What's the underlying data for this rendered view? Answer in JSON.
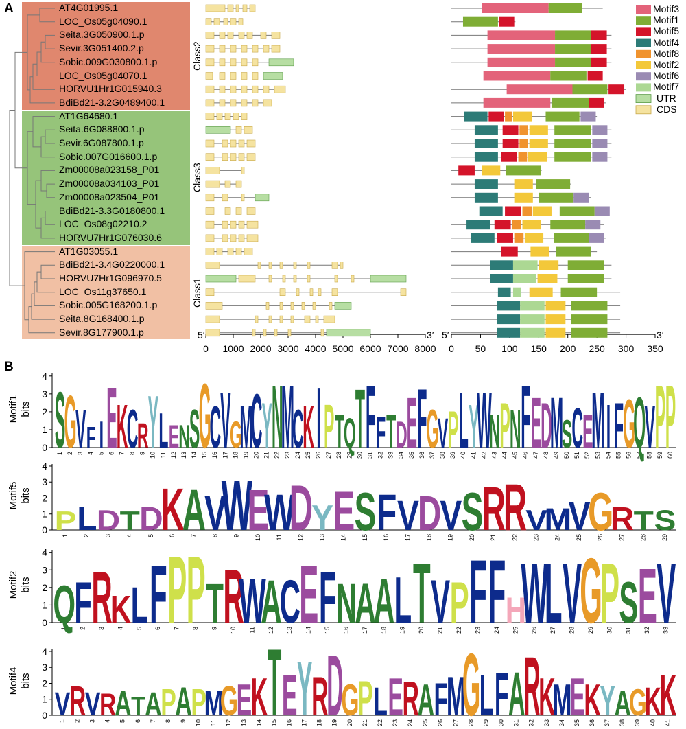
{
  "panel_a": {
    "label": "A",
    "classes": [
      {
        "name": "Class2",
        "color": "#e0876e"
      },
      {
        "name": "Class3",
        "color": "#96c47a"
      },
      {
        "name": "Class1",
        "color": "#f1c0a4"
      }
    ],
    "genes": [
      {
        "name": "AT4G01995.1",
        "class": 0,
        "motifs": [
          [
            "Motif3",
            52,
            167
          ],
          [
            "Motif1",
            167,
            224
          ]
        ]
      },
      {
        "name": "LOC_Os05g04090.1",
        "class": 0,
        "motifs": [
          [
            "Motif1",
            20,
            80
          ],
          [
            "Motif5",
            82,
            108
          ]
        ]
      },
      {
        "name": "Seita.3G050900.1.p",
        "class": 0,
        "motifs": [
          [
            "Motif3",
            62,
            178
          ],
          [
            "Motif1",
            178,
            240
          ],
          [
            "Motif5",
            240,
            267
          ]
        ]
      },
      {
        "name": "Sevir.3G051400.2.p",
        "class": 0,
        "motifs": [
          [
            "Motif3",
            62,
            178
          ],
          [
            "Motif1",
            178,
            240
          ],
          [
            "Motif5",
            240,
            267
          ]
        ]
      },
      {
        "name": "Sobic.009G030800.1.p",
        "class": 0,
        "motifs": [
          [
            "Motif3",
            62,
            178
          ],
          [
            "Motif1",
            178,
            240
          ],
          [
            "Motif5",
            240,
            267
          ]
        ]
      },
      {
        "name": "LOC_Os05g04070.1",
        "class": 0,
        "motifs": [
          [
            "Motif3",
            55,
            170
          ],
          [
            "Motif1",
            170,
            232
          ],
          [
            "Motif5",
            234,
            260
          ]
        ]
      },
      {
        "name": "HORVU1Hr1G015940.3",
        "class": 0,
        "motifs": [
          [
            "Motif3",
            95,
            208
          ],
          [
            "Motif1",
            208,
            268
          ],
          [
            "Motif5",
            270,
            297
          ]
        ]
      },
      {
        "name": "BdiBd21-3.2G0489400.1",
        "class": 0,
        "motifs": [
          [
            "Motif3",
            55,
            170
          ],
          [
            "Motif1",
            172,
            236
          ],
          [
            "Motif5",
            236,
            262
          ]
        ]
      },
      {
        "name": "AT1G64680.1",
        "class": 1,
        "motifs": [
          [
            "Motif4",
            22,
            62
          ],
          [
            "Motif5",
            64,
            90
          ],
          [
            "Motif8",
            92,
            104
          ],
          [
            "Motif2",
            106,
            138
          ],
          [
            "Motif1",
            162,
            220
          ],
          [
            "Motif6",
            222,
            248
          ]
        ]
      },
      {
        "name": "Seita.6G088800.1.p",
        "class": 1,
        "motifs": [
          [
            "Motif4",
            40,
            80
          ],
          [
            "Motif5",
            88,
            115
          ],
          [
            "Motif8",
            117,
            132
          ],
          [
            "Motif2",
            134,
            166
          ],
          [
            "Motif1",
            177,
            240
          ],
          [
            "Motif6",
            242,
            268
          ]
        ]
      },
      {
        "name": "Sevir.6G087800.1.p",
        "class": 1,
        "motifs": [
          [
            "Motif4",
            40,
            80
          ],
          [
            "Motif5",
            88,
            115
          ],
          [
            "Motif8",
            117,
            132
          ],
          [
            "Motif2",
            134,
            166
          ],
          [
            "Motif1",
            177,
            240
          ],
          [
            "Motif6",
            242,
            268
          ]
        ]
      },
      {
        "name": "Sobic.007G016600.1.p",
        "class": 1,
        "motifs": [
          [
            "Motif4",
            40,
            80
          ],
          [
            "Motif5",
            86,
            113
          ],
          [
            "Motif8",
            115,
            130
          ],
          [
            "Motif2",
            132,
            164
          ],
          [
            "Motif1",
            177,
            240
          ],
          [
            "Motif6",
            242,
            268
          ]
        ]
      },
      {
        "name": "Zm00008a023158_P01",
        "class": 1,
        "motifs": [
          [
            "Motif5",
            12,
            40
          ],
          [
            "Motif2",
            52,
            84
          ],
          [
            "Motif1",
            94,
            154
          ]
        ]
      },
      {
        "name": "Zm00008a034103_P01",
        "class": 1,
        "motifs": [
          [
            "Motif4",
            40,
            80
          ],
          [
            "Motif2",
            108,
            140
          ],
          [
            "Motif1",
            146,
            204
          ]
        ]
      },
      {
        "name": "Zm00008a023504_P01",
        "class": 1,
        "motifs": [
          [
            "Motif4",
            40,
            80
          ],
          [
            "Motif2",
            108,
            140
          ],
          [
            "Motif1",
            150,
            210
          ],
          [
            "Motif6",
            210,
            236
          ]
        ]
      },
      {
        "name": "BdiBd21-3.3G0180800.1",
        "class": 1,
        "motifs": [
          [
            "Motif4",
            48,
            88
          ],
          [
            "Motif5",
            92,
            120
          ],
          [
            "Motif8",
            122,
            138
          ],
          [
            "Motif2",
            140,
            172
          ],
          [
            "Motif1",
            186,
            246
          ],
          [
            "Motif6",
            246,
            272
          ]
        ]
      },
      {
        "name": "LOC_Os08g02210.2",
        "class": 1,
        "motifs": [
          [
            "Motif4",
            26,
            66
          ],
          [
            "Motif5",
            74,
            102
          ],
          [
            "Motif8",
            104,
            120
          ],
          [
            "Motif2",
            122,
            154
          ],
          [
            "Motif1",
            170,
            230
          ],
          [
            "Motif6",
            230,
            256
          ]
        ]
      },
      {
        "name": "HORVU7Hr1G076030.6",
        "class": 1,
        "motifs": [
          [
            "Motif4",
            34,
            74
          ],
          [
            "Motif5",
            78,
            106
          ],
          [
            "Motif8",
            108,
            124
          ],
          [
            "Motif2",
            126,
            158
          ],
          [
            "Motif1",
            176,
            236
          ],
          [
            "Motif6",
            236,
            262
          ]
        ]
      },
      {
        "name": "AT1G03055.1",
        "class": 2,
        "motifs": [
          [
            "Motif5",
            86,
            114
          ],
          [
            "Motif2",
            136,
            168
          ],
          [
            "Motif1",
            180,
            240
          ]
        ]
      },
      {
        "name": "BdiBd21-3.4G0220000.1",
        "class": 2,
        "motifs": [
          [
            "Motif4",
            66,
            106
          ],
          [
            "Motif7",
            106,
            148
          ],
          [
            "Motif2",
            150,
            184
          ],
          [
            "Motif1",
            200,
            262
          ]
        ]
      },
      {
        "name": "HORVU7Hr1G096970.5",
        "class": 2,
        "motifs": [
          [
            "Motif4",
            66,
            106
          ],
          [
            "Motif7",
            106,
            146
          ],
          [
            "Motif2",
            148,
            182
          ],
          [
            "Motif1",
            200,
            262
          ]
        ]
      },
      {
        "name": "LOC_Os11g37650.1",
        "class": 2,
        "motifs": [
          [
            "Motif4",
            80,
            102
          ],
          [
            "Motif7",
            106,
            120
          ],
          [
            "Motif2",
            134,
            174
          ],
          [
            "Motif1",
            188,
            250
          ]
        ]
      },
      {
        "name": "Sobic.005G168200.1.p",
        "class": 2,
        "motifs": [
          [
            "Motif4",
            78,
            118
          ],
          [
            "Motif7",
            118,
            160
          ],
          [
            "Motif2",
            162,
            196
          ],
          [
            "Motif1",
            206,
            268
          ]
        ]
      },
      {
        "name": "Seita.8G168400.1.p",
        "class": 2,
        "motifs": [
          [
            "Motif4",
            78,
            118
          ],
          [
            "Motif7",
            118,
            160
          ],
          [
            "Motif2",
            162,
            196
          ],
          [
            "Motif1",
            206,
            268
          ]
        ]
      },
      {
        "name": "Sevir.8G177900.1.p",
        "class": 2,
        "motifs": [
          [
            "Motif4",
            78,
            118
          ],
          [
            "Motif7",
            118,
            160
          ],
          [
            "Motif2",
            162,
            196
          ],
          [
            "Motif1",
            206,
            268
          ]
        ]
      }
    ],
    "gene_structure_axis": {
      "start_label": "5′",
      "end_label": "3′",
      "ticks": [
        "0",
        "1000",
        "2000",
        "3000",
        "4000",
        "5000",
        "6000",
        "7000",
        "8000"
      ],
      "max": 8000
    },
    "motif_axis": {
      "start_label": "5′",
      "end_label": "3′",
      "ticks": [
        "0",
        "50",
        "100",
        "150",
        "200",
        "250",
        "300",
        "350"
      ],
      "max": 350
    },
    "legend": [
      {
        "label": "Motif3",
        "color": "#e3637a"
      },
      {
        "label": "Motif1",
        "color": "#7fad35"
      },
      {
        "label": "Motif5",
        "color": "#d4142a"
      },
      {
        "label": "Motif4",
        "color": "#2d7b77"
      },
      {
        "label": "Motif8",
        "color": "#f0932e"
      },
      {
        "label": "Motif2",
        "color": "#f3c83a"
      },
      {
        "label": "Motif6",
        "color": "#9a8bb3"
      },
      {
        "label": "Motif7",
        "color": "#acd893"
      },
      {
        "label": "UTR",
        "color": "#8fcb77"
      },
      {
        "label": "CDS",
        "color": "#f2d77a"
      }
    ]
  },
  "panel_b": {
    "label": "B",
    "y_label": "bits",
    "y_ticks": [
      "0",
      "1",
      "2",
      "3",
      "4"
    ],
    "logos": [
      {
        "name": "Motif1",
        "length": 60,
        "consensus": "SGVFIEKCRYLENSGCVGMCYNMCKIPTQTFFTDEFGVPLYWNPNFEDMSCEMIFGQVPP"
      },
      {
        "name": "Motif5",
        "length": 29,
        "consensus": "PLDTDKAVWEWDYESFVDVSRRVMVGRTS"
      },
      {
        "name": "Motif2",
        "length": 33,
        "consensus": "QFRKLFPPTRWACEFNAALTVPFFHWLVGPSEV"
      },
      {
        "name": "Motif4",
        "length": 41,
        "consensus": "VRVRATAPAPMGEKTEYRDGPLERAFMGLFARKMEKYAGKK"
      }
    ]
  }
}
